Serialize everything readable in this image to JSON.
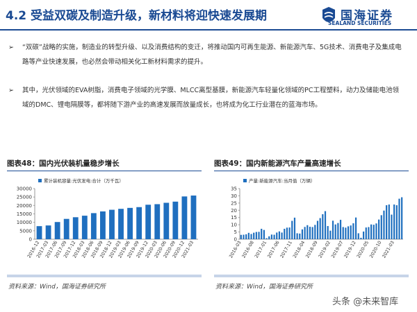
{
  "header": {
    "title": "4.2 受益双碳及制造升级，新材料将迎快速发展期",
    "logo": "国海证券",
    "logo_en": "SEALAND SECURITIES"
  },
  "bullets": [
    "“双碳”战略的实施，制造业的转型升级、以及消费结构的变迁，将推动国内可再生能源、新能源汽车、5G技术、消费电子及集成电路等产业快速发展，也必然会带动相关化工新材料需求的提升。",
    "其中，光伏领域的EVA树脂，消费电子领域的光学膜、MLCC离型基膜，新能源汽车轻量化领域的PC工程塑料，动力及储能电池领域的DMC、锂电隔膜等，都将随下游产业的高速发展而放量成长，也将成为化工行业潜在的蓝海市场。"
  ],
  "chart_data": [
    {
      "type": "bar",
      "title": "图表48：国内光伏装机量稳步增长",
      "source": "资料来源：Wind，国海证券研究所",
      "categories": [
        "2016-12",
        "2017-03",
        "2017-06",
        "2017-09",
        "2017-12",
        "2018-03",
        "2018-06",
        "2018-09",
        "2018-12",
        "2019-03",
        "2019-06",
        "2019-09",
        "2019-12",
        "2020-03",
        "2020-06",
        "2020-09",
        "2020-12",
        "2021-03"
      ],
      "series": [
        {
          "name": "累计装机容量:光伏发电:合计（万千瓦）",
          "color": "#1f6fbf",
          "values": [
            7742,
            8145,
            10182,
            12042,
            13025,
            13931,
            15451,
            16474,
            17446,
            18000,
            18559,
            19019,
            20430,
            20768,
            21581,
            22270,
            25343,
            25878
          ]
        }
      ],
      "ylim": [
        0,
        30000
      ],
      "yticks": [
        0,
        5000,
        10000,
        15000,
        20000,
        25000,
        30000
      ]
    },
    {
      "type": "bar",
      "title": "图表49：国内新能源汽车产量高速增长",
      "source": "资料来源：Wind，国海证券研究所",
      "categories": [
        "2016-03",
        null,
        null,
        null,
        null,
        "2016-08",
        null,
        null,
        null,
        null,
        "2017-01",
        null,
        null,
        null,
        null,
        "2017-06",
        null,
        null,
        null,
        null,
        "2017-11",
        null,
        null,
        null,
        null,
        "2018-04",
        null,
        null,
        null,
        null,
        "2018-09",
        null,
        null,
        null,
        null,
        "2019-02",
        null,
        null,
        null,
        null,
        "2019-07",
        null,
        null,
        null,
        null,
        "2019-12",
        null,
        null,
        null,
        null,
        "2020-05",
        null,
        null,
        null,
        null,
        "2020-10",
        null,
        null,
        null,
        null,
        "2021-03",
        null,
        null,
        null
      ],
      "series": [
        {
          "name": "产量:新能源汽车:当月值（万辆）",
          "color": "#1f6fbf",
          "values": [
            3.0,
            3.1,
            3.4,
            4.4,
            3.6,
            4.5,
            5.0,
            5.1,
            7.2,
            6.4,
            0.7,
            2.0,
            3.2,
            3.1,
            4.6,
            5.4,
            4.6,
            7.2,
            8.0,
            8.1,
            12.7,
            14.9,
            4.1,
            3.9,
            6.8,
            8.5,
            9.7,
            8.6,
            8.4,
            9.9,
            12.7,
            14.6,
            17.3,
            19.4,
            9.1,
            5.9,
            12.8,
            10.2,
            11.2,
            13.4,
            8.4,
            8.0,
            8.9,
            9.5,
            11.0,
            15.0,
            4.1,
            1.0,
            5.3,
            8.1,
            8.4,
            10.2,
            10.0,
            10.9,
            13.6,
            16.6,
            19.8,
            23.5,
            24.0,
            17.0,
            24.0,
            23.5,
            28.0,
            29.0
          ]
        }
      ],
      "ylim": [
        0,
        35
      ],
      "yticks": [
        0,
        5,
        10,
        15,
        20,
        25,
        30,
        35
      ]
    }
  ],
  "watermark": "头条 @未来智库"
}
